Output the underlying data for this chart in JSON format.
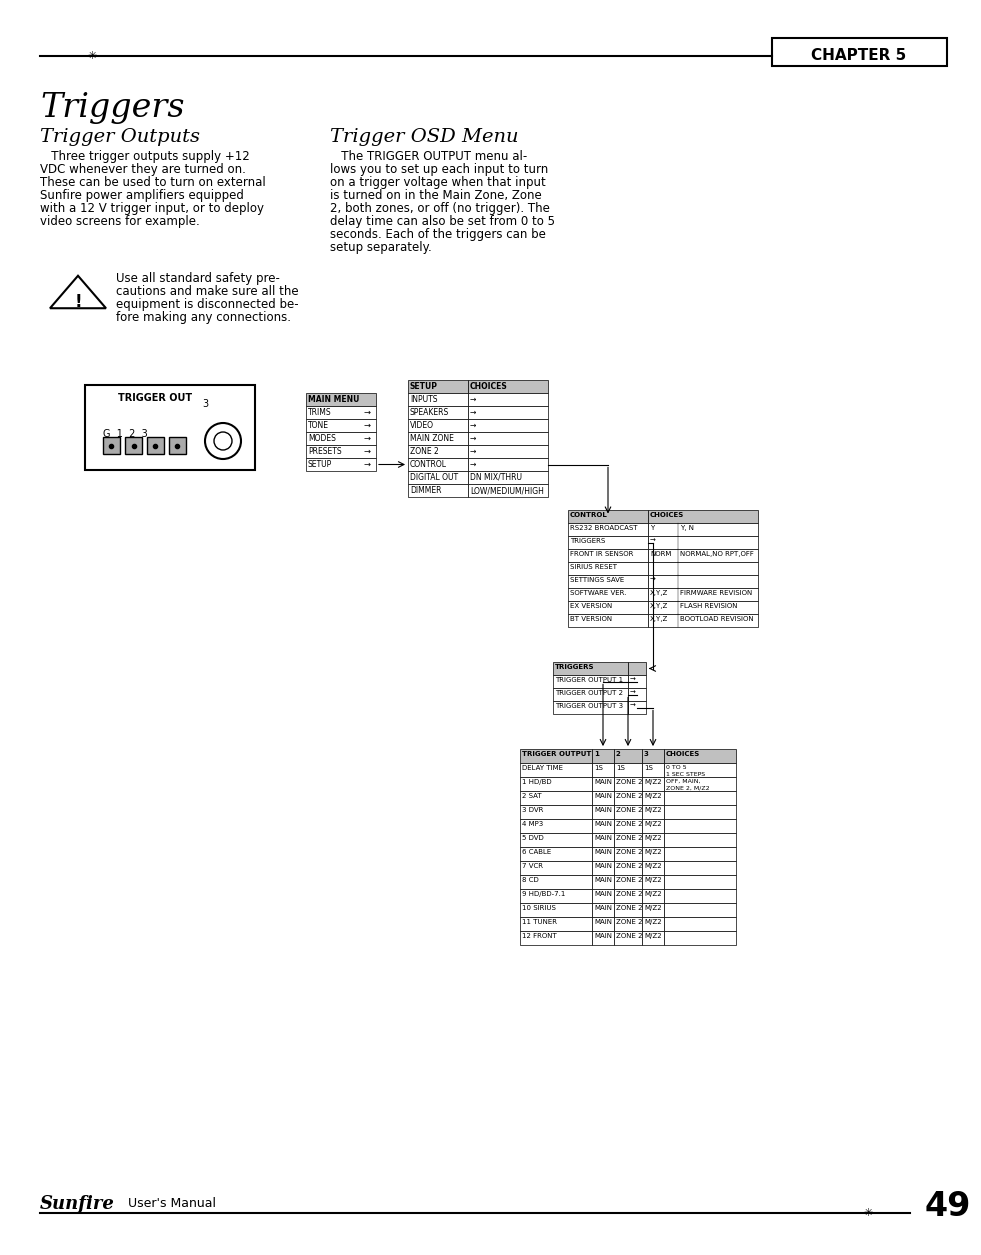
{
  "page_bg": "#ffffff",
  "chapter_label": "CHAPTER 5",
  "title": "Triggers",
  "section1_title": "Trigger Outputs",
  "section1_body": "   Three trigger outputs supply +12\nVDC whenever they are turned on.\nThese can be used to turn on external\nSunfire power amplifiers equipped\nwith a 12 V trigger input, or to deploy\nvideo screens for example.",
  "warning_text": "Use all standard safety pre-\ncautions and make sure all the\nequipment is disconnected be-\nfore making any connections.",
  "section2_title": "Trigger OSD Menu",
  "section2_body": "   The TRIGGER OUTPUT menu al-\nlows you to set up each input to turn\non a trigger voltage when that input\nis turned on in the Main Zone, Zone\n2, both zones, or off (no trigger). The\ndelay time can also be set from 0 to 5\nseconds. Each of the triggers can be\nsetup separately.",
  "footer_brand": "Sunfire",
  "footer_text": "User's Manual",
  "footer_page": "49",
  "main_menu_items": [
    "MAIN MENU",
    "TRIMS",
    "TONE",
    "MODES",
    "PRESETS",
    "SETUP"
  ],
  "main_menu_arrows": [
    false,
    true,
    true,
    true,
    true,
    true
  ],
  "setup_items": [
    "SETUP",
    "INPUTS",
    "SPEAKERS",
    "VIDEO",
    "MAIN ZONE",
    "ZONE 2",
    "CONTROL",
    "DIGITAL OUT",
    "DIMMER"
  ],
  "setup_choices": [
    "CHOICES",
    "→",
    "→",
    "→",
    "→",
    "→",
    "→",
    "DN MIX/THRU",
    "LOW/MEDIUM/HIGH"
  ],
  "control_rows": [
    [
      "CONTROL",
      "CHOICES"
    ],
    [
      "RS232 BROADCAST",
      "Y",
      "Y, N"
    ],
    [
      "TRIGGERS",
      "→",
      ""
    ],
    [
      "FRONT IR SENSOR",
      "NORM",
      "NORMAL,NO RPT,OFF"
    ],
    [
      "SIRIUS RESET",
      "",
      ""
    ],
    [
      "SETTINGS SAVE",
      "→",
      ""
    ],
    [
      "SOFTWARE VER.",
      "X,Y,Z",
      "FIRMWARE REVISION"
    ],
    [
      "EX VERSION",
      "X,Y,Z",
      "FLASH REVISION"
    ],
    [
      "BT VERSION",
      "X,Y,Z",
      "BOOTLOAD REVISION"
    ]
  ],
  "triggers_rows": [
    "TRIGGERS",
    "TRIGGER OUTPUT 1",
    "TRIGGER OUTPUT 2",
    "TRIGGER OUTPUT 3"
  ],
  "trigger_output_header": [
    "TRIGGER OUTPUT",
    "1",
    "2",
    "3",
    "CHOICES"
  ],
  "trigger_output_rows": [
    [
      "DELAY TIME",
      "1S",
      "1S",
      "1S",
      "0 TO 5\n1 SEC STEPS"
    ],
    [
      "1 HD/BD",
      "MAIN",
      "ZONE 2",
      "M/Z2",
      "OFF, MAIN,\nZONE 2, M/Z2"
    ],
    [
      "2 SAT",
      "MAIN",
      "ZONE 2",
      "M/Z2",
      ""
    ],
    [
      "3 DVR",
      "MAIN",
      "ZONE 2",
      "M/Z2",
      ""
    ],
    [
      "4 MP3",
      "MAIN",
      "ZONE 2",
      "M/Z2",
      ""
    ],
    [
      "5 DVD",
      "MAIN",
      "ZONE 2",
      "M/Z2",
      ""
    ],
    [
      "6 CABLE",
      "MAIN",
      "ZONE 2",
      "M/Z2",
      ""
    ],
    [
      "7 VCR",
      "MAIN",
      "ZONE 2",
      "M/Z2",
      ""
    ],
    [
      "8 CD",
      "MAIN",
      "ZONE 2",
      "M/Z2",
      ""
    ],
    [
      "9 HD/BD-7.1",
      "MAIN",
      "ZONE 2",
      "M/Z2",
      ""
    ],
    [
      "10 SIRIUS",
      "MAIN",
      "ZONE 2",
      "M/Z2",
      ""
    ],
    [
      "11 TUNER",
      "MAIN",
      "ZONE 2",
      "M/Z2",
      ""
    ],
    [
      "12 FRONT",
      "MAIN",
      "ZONE 2",
      "M/Z2",
      ""
    ]
  ]
}
